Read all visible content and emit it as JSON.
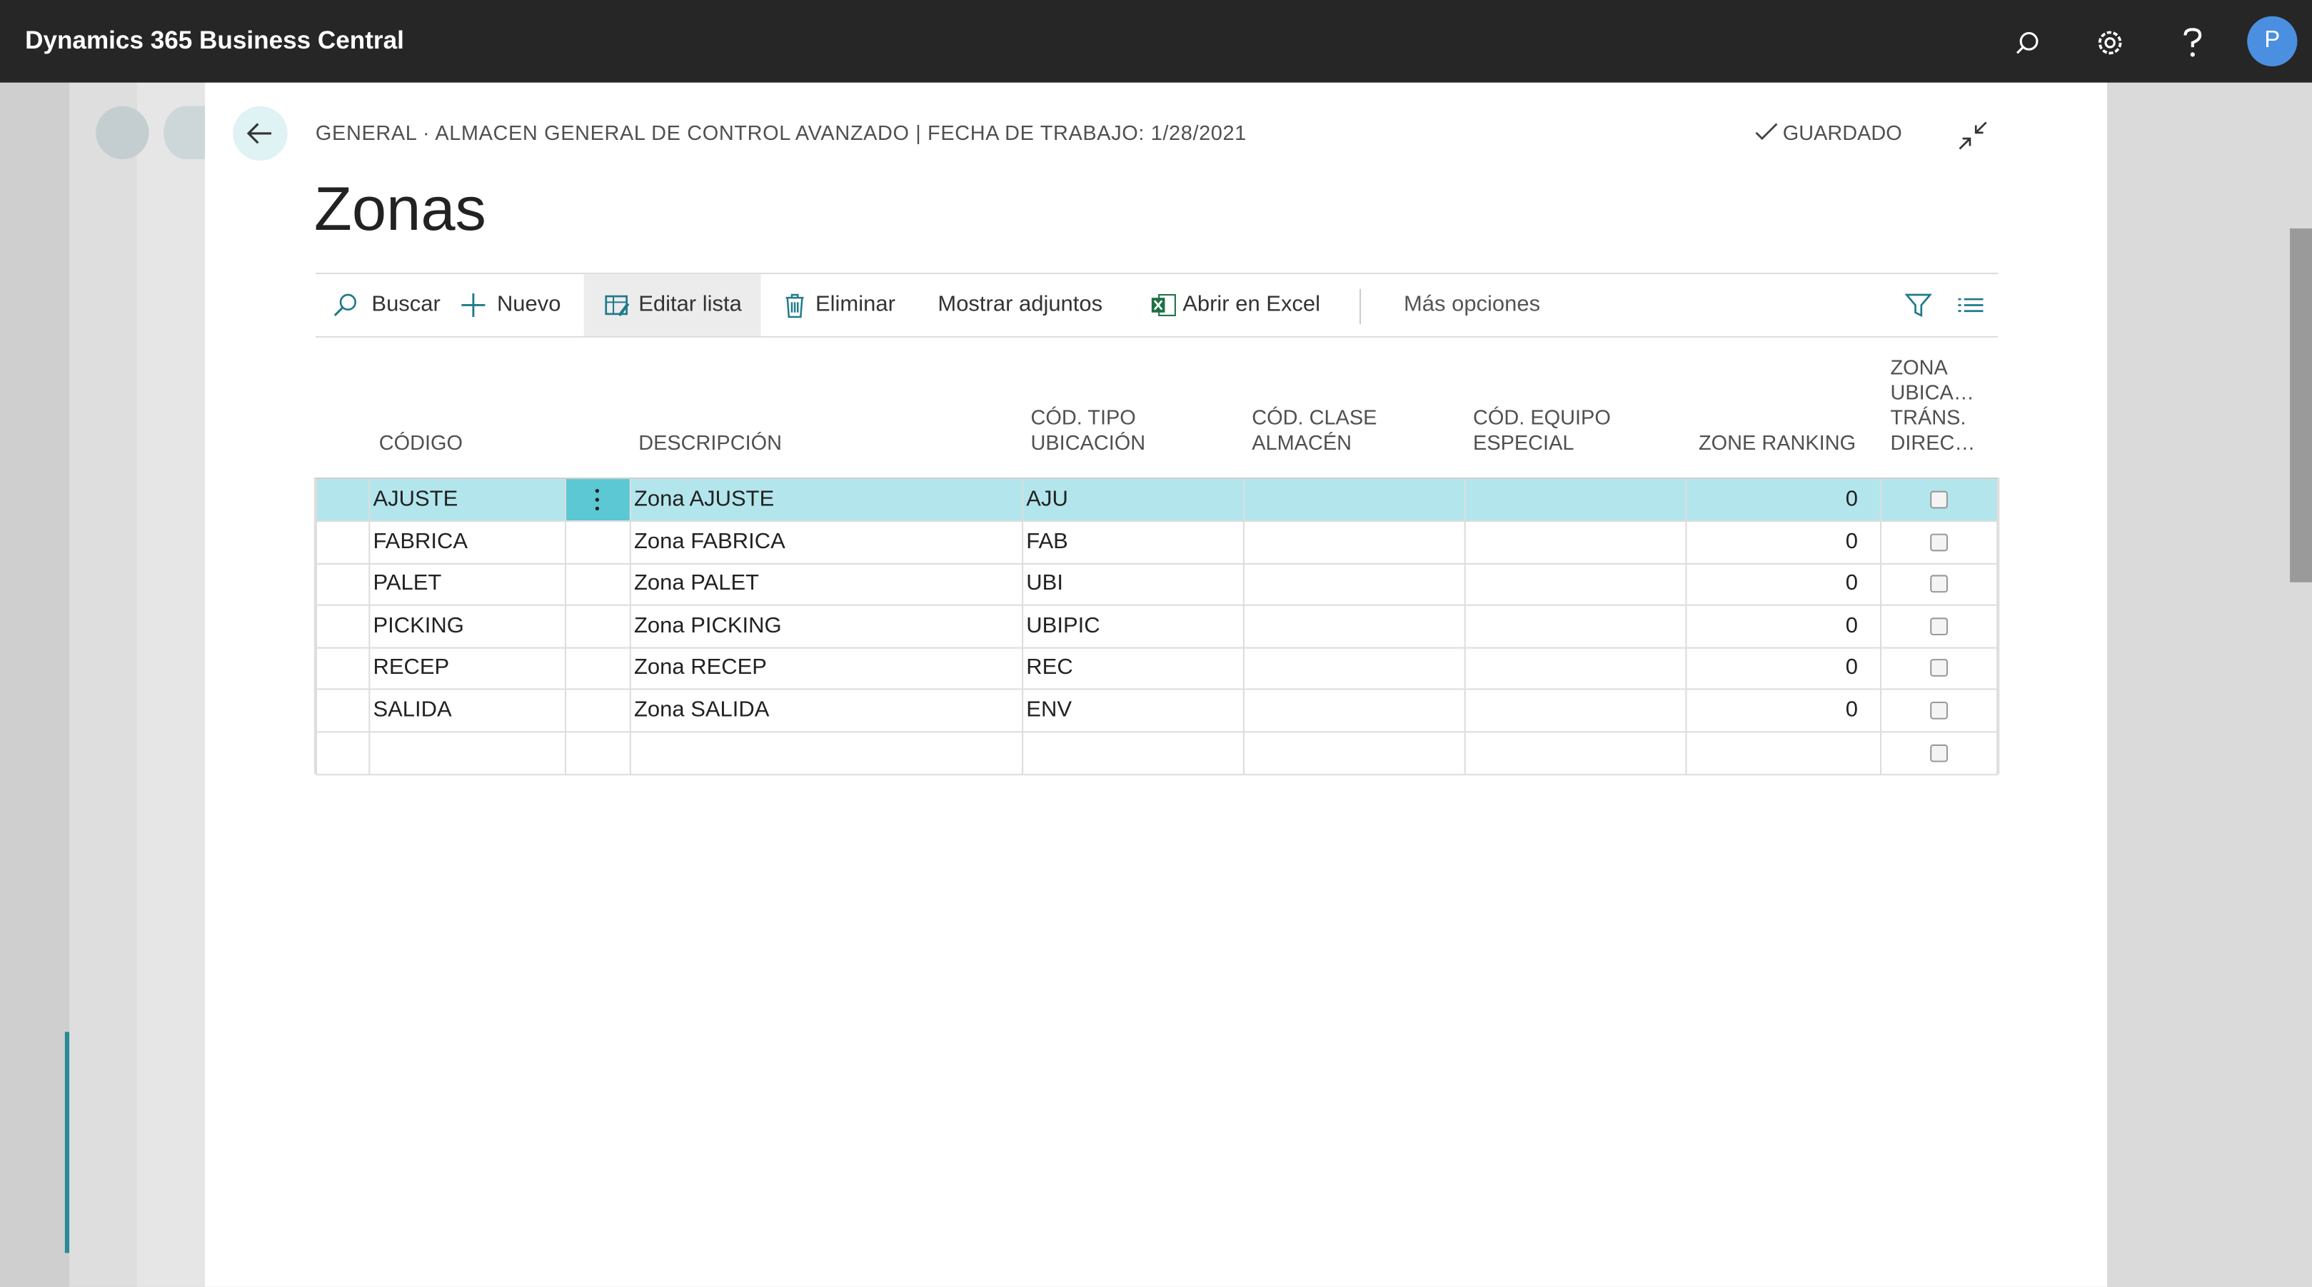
{
  "header": {
    "app_title": "Dynamics 365 Business Central",
    "avatar": "P"
  },
  "breadcrumb": "GENERAL · ALMACEN GENERAL DE CONTROL AVANZADO | FECHA DE TRABAJO: 1/28/2021",
  "status": "GUARDADO",
  "page_title": "Zonas",
  "toolbar": [
    "Buscar",
    "Nuevo",
    "Editar lista",
    "Eliminar",
    "Mostrar adjuntos",
    "Abrir en Excel",
    "Más opciones"
  ],
  "table": {
    "columns": [
      "CÓDIGO",
      "DESCRIPCIÓN",
      "CÓD. TIPO UBICACIÓN",
      "CÓD. CLASE ALMACÉN",
      "CÓD. EQUIPO ESPECIAL",
      "ZONE RANKING",
      "ZONA UBICA… TRÁNS. DIREC…"
    ],
    "rows": [
      [
        "AJUSTE",
        "Zona AJUSTE",
        "AJU",
        "",
        "",
        "0",
        false
      ],
      [
        "FABRICA",
        "Zona FABRICA",
        "FAB",
        "",
        "",
        "0",
        false
      ],
      [
        "PALET",
        "Zona PALET",
        "UBI",
        "",
        "",
        "0",
        false
      ],
      [
        "PICKING",
        "Zona PICKING",
        "UBIPIC",
        "",
        "",
        "0",
        false
      ],
      [
        "RECEP",
        "Zona RECEP",
        "REC",
        "",
        "",
        "0",
        false
      ],
      [
        "SALIDA",
        "Zona SALIDA",
        "ENV",
        "",
        "",
        "0",
        false
      ]
    ]
  }
}
